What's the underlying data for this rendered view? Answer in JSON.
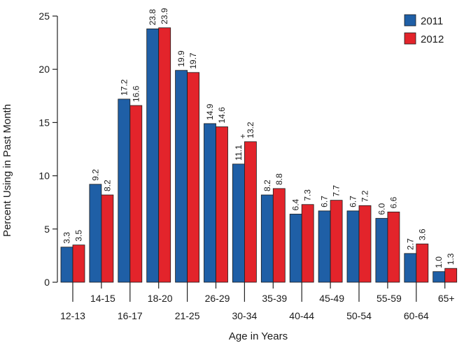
{
  "chart_data": {
    "type": "bar",
    "title": "",
    "xlabel": "Age in Years",
    "ylabel": "Percent Using in Past Month",
    "ylim": [
      0,
      25
    ],
    "yticks": [
      "0",
      "5",
      "10",
      "15",
      "20",
      "25"
    ],
    "categories": [
      "12-13",
      "14-15",
      "16-17",
      "18-20",
      "21-25",
      "26-29",
      "30-34",
      "35-39",
      "40-44",
      "45-49",
      "50-54",
      "55-59",
      "60-64",
      "65+"
    ],
    "series": [
      {
        "name": "2011",
        "color": "#1f5fa6",
        "values": [
          3.3,
          9.2,
          17.2,
          23.8,
          19.9,
          14.9,
          11.1,
          8.2,
          6.4,
          6.7,
          6.7,
          6.0,
          2.7,
          1.0
        ],
        "labels": [
          "3.3",
          "9.2",
          "17.2",
          "23.8",
          "19.9",
          "14.9",
          "11.1",
          "8.2",
          "6.4",
          "6.7",
          "6.7",
          "6.0",
          "2.7",
          "1.0"
        ]
      },
      {
        "name": "2012",
        "color": "#e3242b",
        "values": [
          3.5,
          8.2,
          16.6,
          23.9,
          19.7,
          14.6,
          13.2,
          8.8,
          7.3,
          7.7,
          7.2,
          6.6,
          3.6,
          1.3
        ],
        "labels": [
          "3.5",
          "8.2",
          "16.6",
          "23.9",
          "19.7",
          "14.6",
          "13.2",
          "8.8",
          "7.3",
          "7.7",
          "7.2",
          "6.6",
          "3.6",
          "1.3"
        ]
      }
    ],
    "annotations": [
      {
        "series": 0,
        "index": 6,
        "text": "+"
      }
    ],
    "legend": {
      "position": "top-right"
    }
  }
}
